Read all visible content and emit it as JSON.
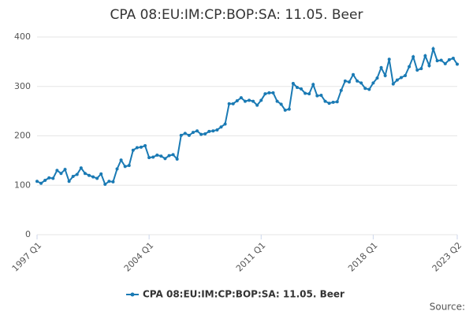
{
  "chart_data": {
    "type": "line",
    "title": "CPA 08:EU:IM:CP:BOP:SA: 11.05. Beer",
    "source": "Source:",
    "categories": [
      "1997 Q1",
      null,
      null,
      null,
      null,
      null,
      null,
      null,
      null,
      null,
      null,
      null,
      null,
      null,
      null,
      null,
      null,
      null,
      null,
      null,
      null,
      null,
      null,
      null,
      null,
      null,
      null,
      null,
      "2004 Q1",
      null,
      null,
      null,
      null,
      null,
      null,
      null,
      null,
      null,
      null,
      null,
      null,
      null,
      null,
      null,
      null,
      null,
      null,
      null,
      null,
      null,
      null,
      null,
      null,
      null,
      null,
      null,
      "2011 Q1",
      null,
      null,
      null,
      null,
      null,
      null,
      null,
      null,
      null,
      null,
      null,
      null,
      null,
      null,
      null,
      null,
      null,
      null,
      null,
      null,
      null,
      null,
      null,
      null,
      null,
      null,
      null,
      "2018 Q1",
      null,
      null,
      null,
      null,
      null,
      null,
      null,
      null,
      null,
      null,
      null,
      null,
      null,
      null,
      null,
      null,
      null,
      null,
      null,
      null,
      "2023 Q2"
    ],
    "series": [
      {
        "name": "CPA 08:EU:IM:CP:BOP:SA: 11.05. Beer",
        "color": "#1a7ab4",
        "values": [
          108,
          104,
          110,
          115,
          114,
          130,
          124,
          132,
          108,
          118,
          122,
          135,
          124,
          120,
          117,
          114,
          123,
          102,
          108,
          107,
          133,
          151,
          138,
          140,
          171,
          176,
          177,
          180,
          156,
          157,
          161,
          159,
          154,
          160,
          162,
          153,
          201,
          205,
          201,
          207,
          210,
          203,
          204,
          209,
          210,
          212,
          218,
          224,
          265,
          265,
          271,
          277,
          270,
          272,
          270,
          262,
          272,
          285,
          287,
          287,
          270,
          264,
          252,
          254,
          306,
          298,
          295,
          286,
          285,
          304,
          281,
          282,
          270,
          266,
          268,
          269,
          292,
          311,
          309,
          324,
          311,
          307,
          296,
          294,
          307,
          317,
          338,
          322,
          355,
          305,
          313,
          318,
          322,
          340,
          360,
          333,
          336,
          362,
          342,
          376,
          352,
          353,
          346,
          354,
          357,
          345
        ]
      }
    ],
    "ylim": [
      0,
      400
    ],
    "yticks": [
      0,
      100,
      200,
      300,
      400
    ],
    "grid": true
  }
}
